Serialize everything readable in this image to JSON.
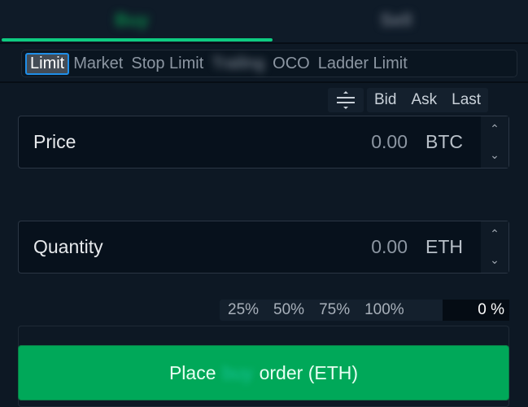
{
  "tabs": {
    "buy": "Buy",
    "sell": "Sell"
  },
  "order_types": [
    "Limit",
    "Market",
    "Stop Limit",
    "Trailing",
    "OCO",
    "Ladder Limit"
  ],
  "active_order_type": "Limit",
  "toolbar": {
    "icon": "adjust-icon",
    "bid": "Bid",
    "ask": "Ask",
    "last": "Last"
  },
  "price": {
    "label": "Price",
    "value": "0.00",
    "unit": "BTC"
  },
  "quantity": {
    "label": "Quantity",
    "value": "0.00",
    "unit": "ETH"
  },
  "percent": {
    "options": [
      "25%",
      "50%",
      "75%",
      "100%"
    ],
    "value": "0 %"
  },
  "place_button": {
    "prefix": "Place",
    "side": "buy",
    "suffix": "order (ETH)"
  },
  "colors": {
    "accent": "#0ecb81",
    "button": "#00a859",
    "active_border": "#1f8ee8"
  }
}
